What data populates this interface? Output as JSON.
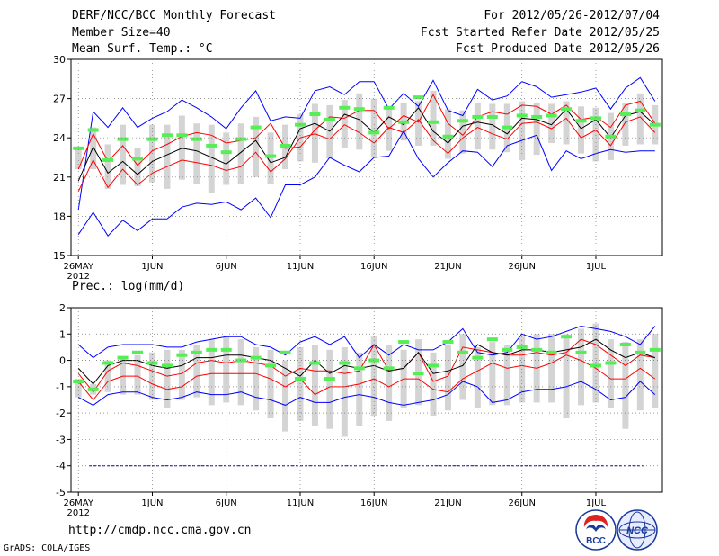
{
  "header": {
    "line1_left": "DERF/NCC/BCC Monthly Forecast",
    "line2_left": "Member Size=40",
    "line3_left": "Mean Surf. Temp.: °C",
    "line1_right": "For 2012/05/26-2012/07/04",
    "line2_right": "Fcst Started Refer Date 2012/05/25",
    "line3_right": "Fcst Produced Date 2012/05/26"
  },
  "footer": {
    "url": "http://cmdp.ncc.cma.gov.cn",
    "grads": "GrADS: COLA/IGES"
  },
  "logos": {
    "bcc": "BCC",
    "ncc": "NCC"
  },
  "colors": {
    "envelope": "#0000ff",
    "spread": "#ff0000",
    "mean": "#000000",
    "obs": "#55ee55",
    "box": "#d4d4d4",
    "zero_line": "#00008b"
  },
  "chart_data": [
    {
      "type": "line",
      "title": "Mean Surf. Temp.: °C",
      "ylim": [
        15,
        30
      ],
      "yticks": [
        15,
        18,
        21,
        24,
        27,
        30
      ],
      "xtick_labels": [
        "26MAY\n2012",
        "1JUN",
        "6JUN",
        "11JUN",
        "16JUN",
        "21JUN",
        "26JUN",
        "1JUL"
      ],
      "xtick_days": [
        1,
        6,
        11,
        16,
        21,
        26,
        31,
        36
      ],
      "days": 40,
      "series": [
        {
          "name": "max",
          "values": [
            18.5,
            26.0,
            24.8,
            26.3,
            24.8,
            25.5,
            26.0,
            26.9,
            26.3,
            25.6,
            24.7,
            26.3,
            27.6,
            25.3,
            25.6,
            25.5,
            27.6,
            27.9,
            27.3,
            28.3,
            28.3,
            26.2,
            27.4,
            26.4,
            28.4,
            26.1,
            25.7,
            27.7,
            26.9,
            27.2,
            28.3,
            27.9,
            27.1,
            27.3,
            27.5,
            27.8,
            26.2,
            27.8,
            28.6,
            26.8
          ]
        },
        {
          "name": "upper",
          "values": [
            21.6,
            24.3,
            22.2,
            23.4,
            21.9,
            23.0,
            23.5,
            24.1,
            24.4,
            24.2,
            23.6,
            23.8,
            24.0,
            25.1,
            23.2,
            23.3,
            24.6,
            25.6,
            25.5,
            26.1,
            26.1,
            24.7,
            25.7,
            25.2,
            27.3,
            25.1,
            24.2,
            25.6,
            26.0,
            25.8,
            26.5,
            26.4,
            25.8,
            26.5,
            25.4,
            25.6,
            24.8,
            26.5,
            26.8,
            25.1
          ]
        },
        {
          "name": "mean",
          "values": [
            20.7,
            23.3,
            21.3,
            22.2,
            21.2,
            22.2,
            22.7,
            23.2,
            23.0,
            22.5,
            22.0,
            22.9,
            23.8,
            22.1,
            22.5,
            24.7,
            25.1,
            24.5,
            25.8,
            25.4,
            24.4,
            25.6,
            25.0,
            26.3,
            24.5,
            23.6,
            24.9,
            25.2,
            25.0,
            24.3,
            25.5,
            25.4,
            25.0,
            26.2,
            24.7,
            25.4,
            24.0,
            25.7,
            26.0,
            25.0
          ]
        },
        {
          "name": "lower",
          "values": [
            19.9,
            22.3,
            20.2,
            21.6,
            20.4,
            21.3,
            21.8,
            22.3,
            22.1,
            21.9,
            21.5,
            21.8,
            22.9,
            21.4,
            22.4,
            24.0,
            24.3,
            23.9,
            25.0,
            24.4,
            23.6,
            24.8,
            24.4,
            25.4,
            23.8,
            22.8,
            24.0,
            24.8,
            24.3,
            23.9,
            25.1,
            25.2,
            24.7,
            25.5,
            24.0,
            24.6,
            23.4,
            25.2,
            25.6,
            24.4
          ]
        },
        {
          "name": "min",
          "values": [
            16.6,
            18.3,
            16.5,
            17.7,
            16.9,
            17.8,
            17.8,
            18.7,
            19.0,
            18.9,
            19.1,
            18.5,
            19.4,
            17.9,
            20.4,
            20.4,
            21.0,
            22.5,
            21.9,
            21.4,
            22.5,
            22.6,
            24.5,
            22.4,
            21.0,
            22.1,
            23.0,
            22.9,
            21.8,
            23.4,
            23.8,
            24.2,
            21.5,
            23.0,
            22.4,
            22.8,
            23.1,
            22.9,
            23.0,
            23.0
          ]
        }
      ],
      "box": {
        "high": [
          23.2,
          24.8,
          23.5,
          25.0,
          23.2,
          25.0,
          25.0,
          25.7,
          25.1,
          25.0,
          24.4,
          25.1,
          25.6,
          24.4,
          25.0,
          25.8,
          26.6,
          26.5,
          26.9,
          27.4,
          27.0,
          26.3,
          26.7,
          26.8,
          27.6,
          26.2,
          26.1,
          26.7,
          26.6,
          26.6,
          26.8,
          26.7,
          26.6,
          26.8,
          26.4,
          26.3,
          25.9,
          26.7,
          27.4,
          26.5
        ],
        "low": [
          21.6,
          21.6,
          20.1,
          20.4,
          20.3,
          20.6,
          20.1,
          20.8,
          20.5,
          19.8,
          20.4,
          20.5,
          21.0,
          20.5,
          21.6,
          22.2,
          22.1,
          22.4,
          23.2,
          23.1,
          22.5,
          23.0,
          23.8,
          23.4,
          23.4,
          22.4,
          22.8,
          23.1,
          23.1,
          22.9,
          22.3,
          22.7,
          23.6,
          23.5,
          22.8,
          22.2,
          22.3,
          23.4,
          23.5,
          23.5
        ]
      },
      "obs": [
        23.2,
        24.6,
        22.3,
        23.9,
        22.4,
        23.9,
        24.2,
        24.2,
        23.9,
        23.4,
        22.9,
        23.9,
        24.8,
        22.6,
        23.4,
        25.0,
        25.8,
        25.4,
        26.3,
        26.2,
        24.4,
        26.3,
        25.2,
        27.1,
        25.2,
        24.1,
        25.3,
        25.6,
        25.6,
        24.8,
        25.7,
        25.6,
        25.7,
        26.2,
        25.3,
        25.5,
        24.1,
        25.8,
        26.1,
        25.0
      ]
    },
    {
      "type": "line",
      "title": "Prec.: log(mm/d)",
      "ylim": [
        -5,
        2
      ],
      "yticks": [
        -5,
        -4,
        -3,
        -2,
        -1,
        0,
        1,
        2
      ],
      "xtick_labels": [
        "26MAY\n2012",
        "1JUN",
        "6JUN",
        "11JUN",
        "16JUN",
        "21JUN",
        "26JUN",
        "1JUL"
      ],
      "xtick_days": [
        1,
        6,
        11,
        16,
        21,
        26,
        31,
        36
      ],
      "days": 40,
      "zero_line": 0,
      "reference_line": -4,
      "series": [
        {
          "name": "max",
          "values": [
            0.6,
            0.1,
            0.5,
            0.6,
            0.6,
            0.6,
            0.5,
            0.5,
            0.7,
            0.8,
            0.9,
            0.9,
            0.6,
            0.5,
            0.2,
            0.7,
            0.9,
            0.6,
            0.9,
            0.1,
            0.6,
            0.2,
            0.6,
            0.4,
            0.4,
            0.7,
            1.2,
            0.3,
            0.2,
            0.3,
            1.0,
            0.8,
            0.9,
            1.1,
            1.3,
            1.2,
            1.1,
            0.9,
            0.6,
            1.3
          ]
        },
        {
          "name": "upper",
          "values": [
            -0.5,
            -1.2,
            -0.4,
            -0.1,
            -0.2,
            -0.4,
            -0.6,
            -0.5,
            -0.1,
            0.0,
            -0.1,
            0.0,
            -0.1,
            -0.2,
            -0.6,
            -0.3,
            -0.4,
            -0.4,
            -0.5,
            -0.4,
            0.6,
            -0.4,
            -0.3,
            0.3,
            -0.8,
            -0.6,
            0.5,
            0.4,
            0.3,
            0.2,
            0.2,
            0.3,
            0.2,
            0.3,
            0.8,
            0.6,
            0.2,
            -0.2,
            0.2,
            0.1
          ]
        },
        {
          "name": "mean",
          "values": [
            -0.3,
            -0.9,
            -0.2,
            0.0,
            0.0,
            -0.2,
            -0.3,
            -0.2,
            0.1,
            0.1,
            0.2,
            0.2,
            0.1,
            0.0,
            -0.3,
            -0.6,
            0.0,
            -0.5,
            -0.2,
            -0.3,
            -0.2,
            -0.4,
            -0.3,
            0.3,
            -0.5,
            -0.4,
            -0.2,
            0.6,
            0.3,
            0.2,
            0.4,
            0.4,
            0.3,
            0.4,
            0.5,
            0.8,
            0.4,
            0.1,
            0.3,
            0.1
          ]
        },
        {
          "name": "lower",
          "values": [
            -0.8,
            -1.5,
            -0.8,
            -0.6,
            -0.6,
            -0.9,
            -1.1,
            -1.0,
            -0.6,
            -0.5,
            -0.5,
            -0.5,
            -0.5,
            -0.7,
            -1.0,
            -0.7,
            -1.3,
            -1.0,
            -1.0,
            -0.9,
            -0.7,
            -1.0,
            -0.7,
            -0.7,
            -1.1,
            -1.2,
            -0.7,
            -0.4,
            -0.1,
            -0.3,
            -0.2,
            -0.3,
            -0.1,
            0.2,
            0.0,
            -0.3,
            -0.7,
            -0.7,
            -0.3,
            -0.7
          ]
        },
        {
          "name": "min",
          "values": [
            -1.4,
            -1.7,
            -1.3,
            -1.2,
            -1.2,
            -1.4,
            -1.5,
            -1.4,
            -1.2,
            -1.3,
            -1.3,
            -1.2,
            -1.4,
            -1.5,
            -1.7,
            -1.4,
            -1.6,
            -1.6,
            -1.4,
            -1.3,
            -1.4,
            -1.6,
            -1.7,
            -1.6,
            -1.5,
            -1.3,
            -0.8,
            -1.0,
            -1.6,
            -1.5,
            -1.2,
            -1.1,
            -1.1,
            -1.0,
            -0.8,
            -1.1,
            -1.5,
            -1.4,
            -0.8,
            -1.3
          ]
        }
      ],
      "box": {
        "high": [
          -0.7,
          -0.9,
          0.0,
          0.1,
          0.2,
          0.3,
          0.4,
          0.4,
          0.6,
          0.8,
          0.9,
          0.8,
          0.5,
          0.4,
          0.0,
          0.5,
          0.6,
          0.4,
          0.5,
          0.3,
          0.9,
          0.6,
          0.4,
          0.8,
          0.3,
          0.6,
          1.0,
          0.5,
          0.7,
          0.6,
          0.9,
          1.0,
          1.0,
          1.0,
          1.2,
          1.4,
          0.8,
          0.7,
          0.8,
          1.0
        ],
        "low": [
          -1.4,
          -1.3,
          -1.2,
          -1.3,
          -1.3,
          -1.5,
          -1.8,
          -1.5,
          -1.4,
          -1.7,
          -1.6,
          -1.7,
          -1.9,
          -2.2,
          -2.7,
          -2.3,
          -2.5,
          -2.6,
          -2.9,
          -2.5,
          -2.1,
          -2.3,
          -1.8,
          -1.7,
          -2.1,
          -1.9,
          -1.5,
          -1.8,
          -1.7,
          -1.7,
          -1.6,
          -1.6,
          -1.6,
          -2.2,
          -1.7,
          -1.6,
          -1.8,
          -2.6,
          -1.9,
          -1.8
        ]
      },
      "obs": [
        -0.8,
        -1.1,
        -0.1,
        0.1,
        0.3,
        -0.1,
        -0.2,
        0.2,
        0.3,
        0.4,
        0.4,
        0.0,
        0.1,
        -0.2,
        0.3,
        -0.7,
        -0.1,
        -0.7,
        -0.1,
        -0.3,
        0.0,
        -0.3,
        0.7,
        -0.5,
        -0.2,
        0.7,
        0.3,
        0.1,
        0.8,
        0.4,
        0.5,
        0.4,
        0.3,
        0.9,
        0.3,
        -0.2,
        -0.1,
        0.6,
        0.3,
        0.4
      ]
    }
  ]
}
